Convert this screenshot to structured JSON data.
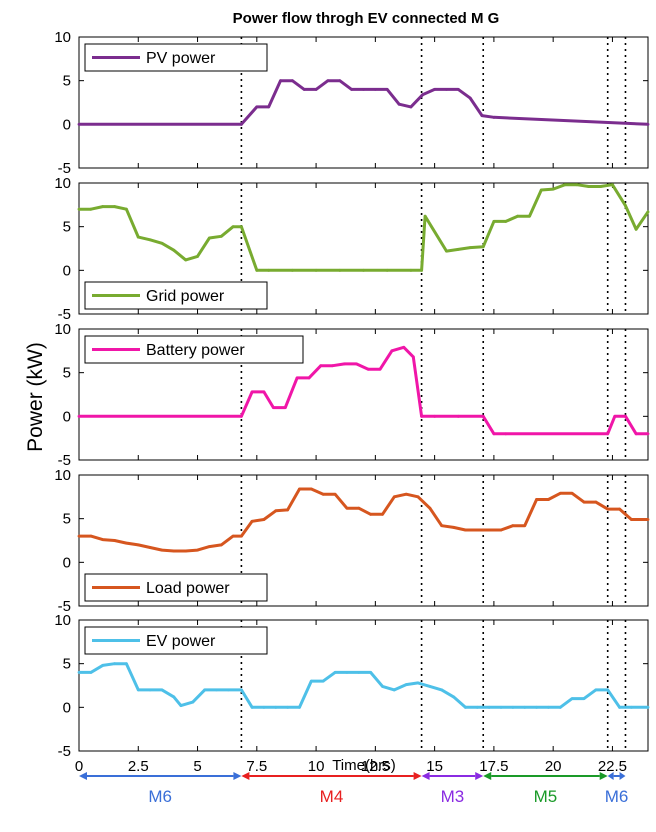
{
  "chart_data": {
    "type": "line",
    "title": "Power flow throgh EV connected M G",
    "ylabel": "Power (kW)",
    "xlabel": "Time(hrs)",
    "xlim": [
      0,
      24
    ],
    "x_ticks": [
      0,
      2.5,
      5,
      7.5,
      10,
      12.5,
      15,
      17.5,
      20,
      22.5
    ],
    "x_tick_labels": [
      "0",
      "2.5",
      "5",
      "7.5",
      "10",
      "12.5",
      "15",
      "17.5",
      "20",
      "22.5"
    ],
    "ylim": [
      -5,
      10
    ],
    "y_ticks": [
      -5,
      0,
      5,
      10
    ],
    "y_tick_labels": [
      "-5",
      "0",
      "5",
      "10"
    ],
    "grid": false,
    "vlines": [
      6.85,
      14.45,
      17.05,
      22.3,
      23.05
    ],
    "panels": [
      {
        "legend": "PV power",
        "legend_position": "top-left",
        "color": "#7b2d8e",
        "x": [
          0,
          6.85,
          7.5,
          8,
          8.5,
          9,
          9.5,
          10,
          10.5,
          11,
          11.5,
          12,
          12.5,
          13,
          13.5,
          14,
          14.5,
          15,
          15.5,
          16,
          16.5,
          17,
          17.5,
          24
        ],
        "y": [
          0,
          0,
          2,
          2,
          5,
          5,
          4,
          4,
          5,
          5,
          4,
          4,
          4,
          4,
          2.3,
          2,
          3.4,
          4,
          4,
          4,
          3,
          1,
          0.8,
          0
        ]
      },
      {
        "legend": "Grid power",
        "legend_position": "bottom-left",
        "color": "#78ab30",
        "x": [
          0,
          0.5,
          1,
          1.5,
          2,
          2.5,
          3,
          3.5,
          4,
          4.5,
          5,
          5.5,
          6,
          6.5,
          6.85,
          7.5,
          8,
          9,
          10,
          11,
          12,
          13,
          14,
          14.45,
          14.6,
          15.5,
          16,
          16.5,
          17.05,
          17.5,
          18,
          18.5,
          19,
          19.5,
          20,
          20.5,
          21,
          21.5,
          22,
          22.5,
          23.05,
          23.5,
          24
        ],
        "y": [
          7,
          7,
          7.3,
          7.3,
          7,
          3.8,
          3.5,
          3.1,
          2.3,
          1.2,
          1.6,
          3.7,
          3.9,
          5,
          5,
          0,
          0,
          0,
          0,
          0,
          0,
          0,
          0,
          0,
          6.2,
          2.2,
          2.4,
          2.6,
          2.7,
          5.6,
          5.6,
          6.2,
          6.2,
          9.2,
          9.3,
          9.8,
          9.8,
          9.6,
          9.6,
          9.8,
          7.4,
          4.7,
          6.7
        ]
      },
      {
        "legend": "Battery power",
        "legend_position": "top-left",
        "color": "#f016a8",
        "x": [
          0,
          6.85,
          7.3,
          7.8,
          8.2,
          8.7,
          9.2,
          9.7,
          10.2,
          10.7,
          11.2,
          11.7,
          12.2,
          12.7,
          13.2,
          13.7,
          14.1,
          14.45,
          15,
          16,
          17.05,
          17.5,
          18,
          22.3,
          22.6,
          23.05,
          23.5,
          24
        ],
        "y": [
          0,
          0,
          2.8,
          2.8,
          1,
          1,
          4.4,
          4.4,
          5.8,
          5.8,
          6,
          6,
          5.4,
          5.4,
          7.5,
          7.9,
          6.8,
          0,
          0,
          0,
          0,
          -2,
          -2,
          -2,
          0,
          0,
          -2,
          -2
        ]
      },
      {
        "legend": "Load power",
        "legend_position": "bottom-left",
        "color": "#d6561f",
        "x": [
          0,
          0.5,
          1,
          1.5,
          2,
          2.5,
          3,
          3.5,
          4,
          4.5,
          5,
          5.5,
          6,
          6.5,
          6.85,
          7.3,
          7.8,
          8.3,
          8.8,
          9.3,
          9.8,
          10.3,
          10.8,
          11.3,
          11.8,
          12.3,
          12.8,
          13.3,
          13.8,
          14.3,
          14.8,
          15.3,
          15.8,
          16.3,
          16.8,
          17.3,
          17.8,
          18.3,
          18.8,
          19.3,
          19.8,
          20.3,
          20.8,
          21.3,
          21.8,
          22.3,
          22.8,
          23.3,
          24
        ],
        "y": [
          3,
          3,
          2.6,
          2.5,
          2.2,
          2,
          1.7,
          1.4,
          1.3,
          1.3,
          1.4,
          1.8,
          2,
          3,
          3,
          4.7,
          4.9,
          5.9,
          6,
          8.4,
          8.4,
          7.8,
          7.8,
          6.2,
          6.2,
          5.5,
          5.5,
          7.5,
          7.8,
          7.5,
          6.2,
          4.2,
          4,
          3.7,
          3.7,
          3.7,
          3.7,
          4.2,
          4.2,
          7.2,
          7.2,
          7.9,
          7.9,
          6.9,
          6.9,
          6.1,
          6.1,
          4.9,
          4.9
        ]
      },
      {
        "legend": "EV power",
        "legend_position": "top-left",
        "color": "#4ec0e8",
        "x": [
          0,
          0.5,
          1,
          1.5,
          2,
          2.5,
          3,
          3.5,
          4,
          4.3,
          4.8,
          5.3,
          5.8,
          6.3,
          6.85,
          7.3,
          7.8,
          8.3,
          8.8,
          9.3,
          9.8,
          10.3,
          10.8,
          11.3,
          11.8,
          12.3,
          12.8,
          13.3,
          13.8,
          14.3,
          14.8,
          15.3,
          15.8,
          16.3,
          16.8,
          17.3,
          17.8,
          18.3,
          18.8,
          19.3,
          19.8,
          20.3,
          20.8,
          21.3,
          21.8,
          22.3,
          22.8,
          23.3,
          24
        ],
        "y": [
          4,
          4,
          4.8,
          5,
          5,
          2,
          2,
          2,
          1.2,
          0.2,
          0.6,
          2,
          2,
          2,
          2,
          0,
          0,
          0,
          0,
          0,
          3,
          3,
          4,
          4,
          4,
          4,
          2.4,
          2,
          2.6,
          2.8,
          2.4,
          2,
          1.2,
          0,
          0,
          0,
          0,
          0,
          0,
          0,
          0,
          0,
          1,
          1,
          2,
          2,
          0,
          0,
          0
        ]
      }
    ],
    "modes": [
      {
        "label": "M6",
        "x0": 0,
        "x1": 6.85,
        "color": "#3a6fd8"
      },
      {
        "label": "M4",
        "x0": 6.85,
        "x1": 14.45,
        "color": "#e82020"
      },
      {
        "label": "M3",
        "x0": 14.45,
        "x1": 17.05,
        "color": "#8a2be2"
      },
      {
        "label": "M5",
        "x0": 17.05,
        "x1": 22.3,
        "color": "#1a9a28"
      },
      {
        "label": "M6",
        "x0": 22.3,
        "x1": 23.05,
        "color": "#3a6fd8"
      }
    ]
  }
}
